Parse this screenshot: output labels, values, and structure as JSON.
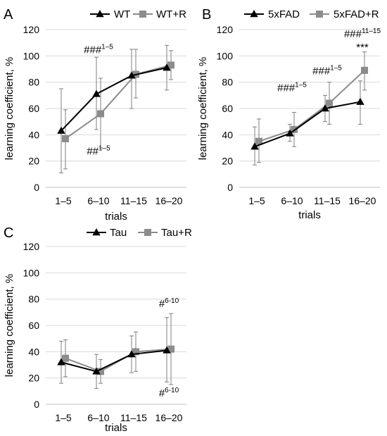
{
  "chart_data": [
    {
      "type": "line",
      "panel": "A",
      "categories": [
        "1–5",
        "6–10",
        "11–15",
        "16–20"
      ],
      "xlabel": "trials",
      "ylabel": "learning coefficient, %",
      "ylim": [
        0,
        120
      ],
      "yticks": [
        "0",
        "20",
        "40",
        "60",
        "80",
        "100",
        "120"
      ],
      "legend_position": "top",
      "series": [
        {
          "name": "WT",
          "color": "#000000",
          "marker": "triangle",
          "values": [
            43,
            71,
            85,
            91
          ],
          "err_high": [
            75,
            99,
            105,
            108
          ],
          "err_low": [
            11,
            44,
            60,
            74
          ]
        },
        {
          "name": "WT+R",
          "color": "#8c8c8c",
          "marker": "square",
          "values": [
            37,
            56,
            86,
            93
          ],
          "err_high": [
            59,
            83,
            105,
            104
          ],
          "err_low": [
            14,
            30,
            68,
            82
          ]
        }
      ],
      "annotations": [
        {
          "main": "###",
          "sup": "1–5",
          "x": 1,
          "y": 102
        },
        {
          "main": "##",
          "sup": "1–5",
          "x": 1,
          "y": 25
        }
      ]
    },
    {
      "type": "line",
      "panel": "B",
      "categories": [
        "1–5",
        "6–10",
        "11–15",
        "16–20"
      ],
      "xlabel": "trials",
      "ylabel": "learning coefficient, %",
      "ylim": [
        0,
        120
      ],
      "yticks": [
        "0",
        "20",
        "40",
        "60",
        "80",
        "100",
        "120"
      ],
      "legend_position": "top",
      "series": [
        {
          "name": "5xFAD",
          "color": "#000000",
          "marker": "triangle",
          "values": [
            31,
            41,
            60,
            65
          ],
          "err_high": [
            46,
            48,
            70,
            81
          ],
          "err_low": [
            17,
            35,
            50,
            48
          ]
        },
        {
          "name": "5xFAD+R",
          "color": "#8c8c8c",
          "marker": "square",
          "values": [
            35,
            44,
            64,
            89
          ],
          "err_high": [
            52,
            57,
            80,
            103
          ],
          "err_low": [
            19,
            31,
            48,
            74
          ]
        }
      ],
      "annotations": [
        {
          "main": "###",
          "sup": "1–5",
          "x": 1,
          "y": 73
        },
        {
          "main": "###",
          "sup": "1–5",
          "x": 2,
          "y": 86
        },
        {
          "main": "###",
          "sup": "11–15",
          "x": 3,
          "y": 114
        },
        {
          "main": "***",
          "sup": "",
          "x": 3,
          "y": 104
        }
      ]
    },
    {
      "type": "line",
      "panel": "C",
      "categories": [
        "1–5",
        "6–10",
        "11–15",
        "16–20"
      ],
      "xlabel": "trials",
      "ylabel": "learning coefficient, %",
      "ylim": [
        0,
        120
      ],
      "yticks": [
        "0",
        "20",
        "40",
        "60",
        "80",
        "100",
        "120"
      ],
      "legend_position": "top",
      "series": [
        {
          "name": "Tau",
          "color": "#000000",
          "marker": "triangle",
          "values": [
            32,
            25,
            38,
            41
          ],
          "err_high": [
            48,
            38,
            52,
            66
          ],
          "err_low": [
            16,
            12,
            24,
            17
          ]
        },
        {
          "name": "Tau+R",
          "color": "#8c8c8c",
          "marker": "square",
          "values": [
            35,
            25,
            40,
            42
          ],
          "err_high": [
            49,
            34,
            55,
            69
          ],
          "err_low": [
            21,
            16,
            25,
            15
          ]
        }
      ],
      "annotations": [
        {
          "main": "#",
          "sup": "6-10",
          "x": 3,
          "y": 74
        },
        {
          "main": "#",
          "sup": "6-10",
          "x": 3,
          "y": 6
        }
      ]
    }
  ]
}
